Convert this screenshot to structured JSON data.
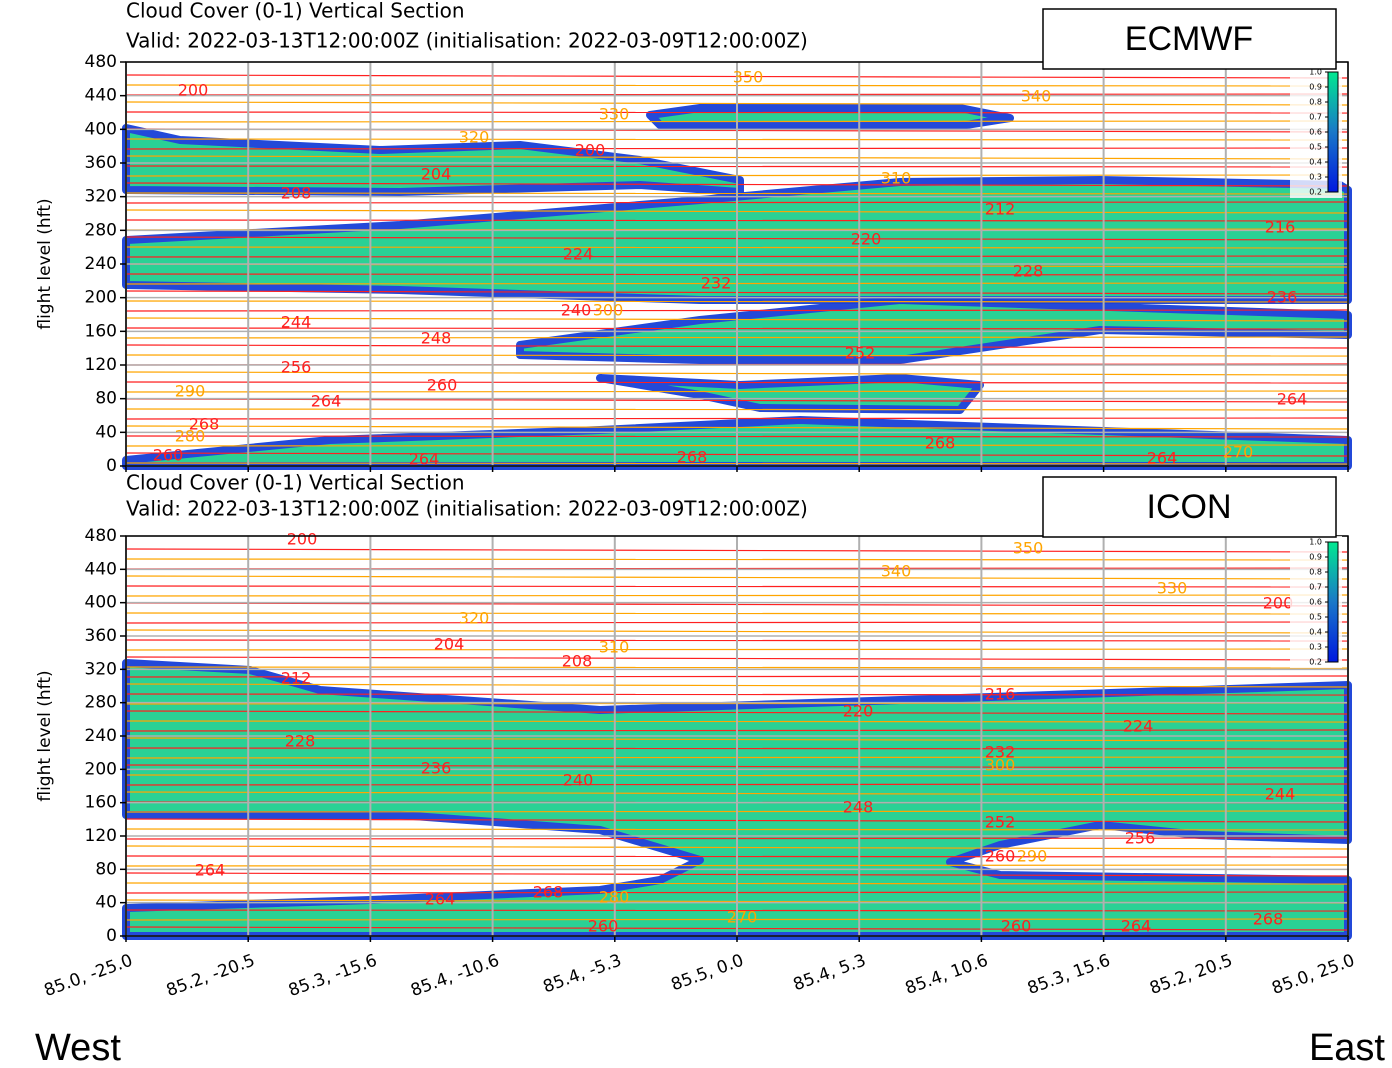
{
  "chart_data": [
    {
      "type": "contour",
      "title": "Cloud Cover (0-1) Vertical Section",
      "subtitle": "Valid: 2022-03-13T12:00:00Z (initialisation: 2022-03-09T12:00:00Z)",
      "ylabel": "flight level (hft)",
      "model": "ECMWF",
      "ylim": [
        0,
        480
      ],
      "yticks": [
        0,
        40,
        80,
        120,
        160,
        200,
        240,
        280,
        320,
        360,
        400,
        440,
        480
      ],
      "grid": true,
      "colorbar_lim": [
        0.2,
        1.0
      ],
      "colorbar_ticks": [
        0.2,
        0.3,
        0.4,
        0.5,
        0.6,
        0.7,
        0.8,
        0.9,
        {
          "value": 1.0,
          "label": "1.0"
        }
      ],
      "temperature_color": "#ff2020",
      "theta_color": "#ffa500",
      "temperature_labels": [
        200,
        200,
        208,
        204,
        212,
        216,
        220,
        224,
        228,
        232,
        236,
        240,
        244,
        248,
        252,
        256,
        260,
        264,
        264,
        268,
        268,
        268,
        264,
        264,
        260
      ],
      "theta_labels": [
        350,
        340,
        330,
        320,
        310,
        300,
        290,
        280,
        270
      ]
    },
    {
      "type": "contour",
      "title": "Cloud Cover (0-1) Vertical Section",
      "subtitle": "Valid: 2022-03-13T12:00:00Z (initialisation: 2022-03-09T12:00:00Z)",
      "ylabel": "flight level (hft)",
      "model": "ICON",
      "ylim": [
        0,
        480
      ],
      "yticks": [
        0,
        40,
        80,
        120,
        160,
        200,
        240,
        280,
        320,
        360,
        400,
        440,
        480
      ],
      "grid": true,
      "categories": [
        "85.0, -25.0",
        "85.2, -20.5",
        "85.3, -15.6",
        "85.4, -10.6",
        "85.4, -5.3",
        "85.5, 0.0",
        "85.4, 5.3",
        "85.4, 10.6",
        "85.3, 15.6",
        "85.2, 20.5",
        "85.0, 25.0"
      ],
      "colorbar_lim": [
        0.2,
        1.0
      ],
      "colorbar_ticks": [
        0.2,
        0.3,
        0.4,
        0.5,
        0.6,
        0.7,
        0.8,
        0.9,
        {
          "value": 1.0,
          "label": "1.0"
        }
      ],
      "temperature_color": "#ff2020",
      "theta_color": "#ffa500",
      "temperature_labels": [
        200,
        204,
        208,
        212,
        216,
        220,
        224,
        228,
        232,
        236,
        240,
        244,
        248,
        252,
        256,
        260,
        264,
        264,
        268,
        260,
        264,
        268,
        260,
        200
      ],
      "theta_labels": [
        350,
        340,
        330,
        320,
        310,
        300,
        290,
        280,
        270
      ]
    }
  ],
  "labels": {
    "west": "West",
    "east": "East"
  }
}
